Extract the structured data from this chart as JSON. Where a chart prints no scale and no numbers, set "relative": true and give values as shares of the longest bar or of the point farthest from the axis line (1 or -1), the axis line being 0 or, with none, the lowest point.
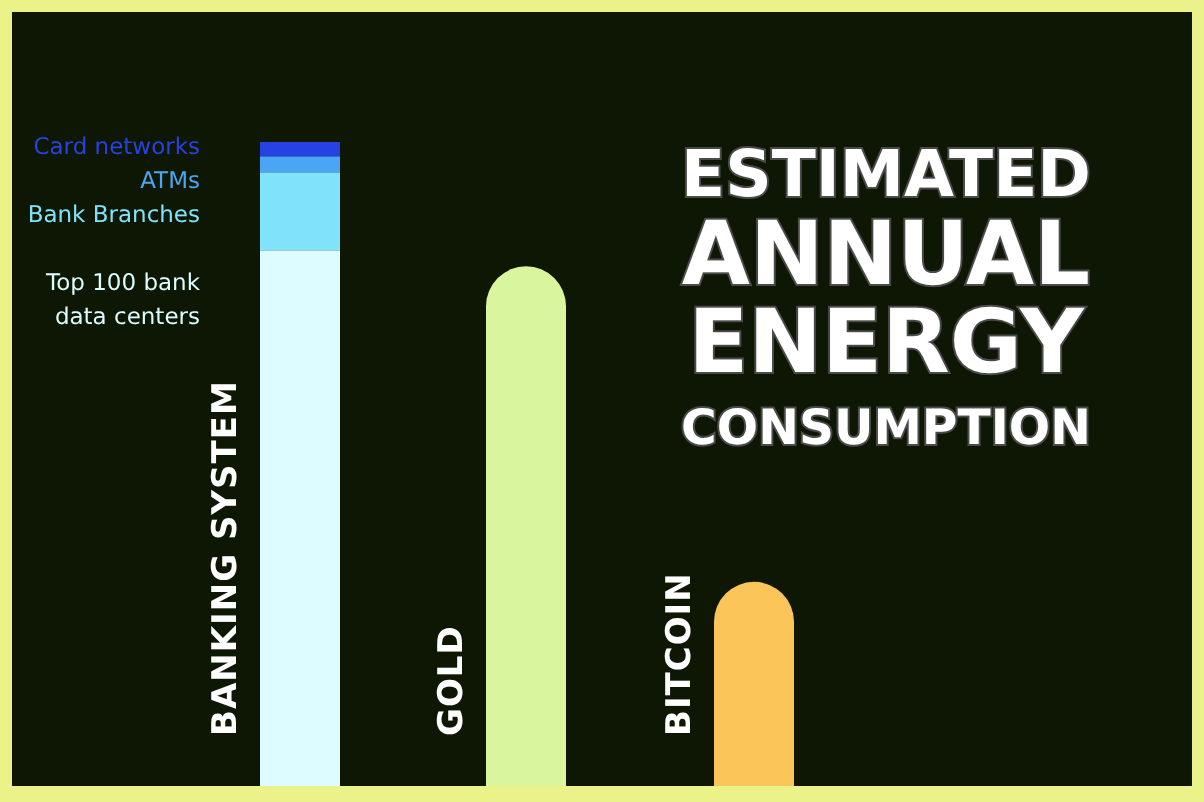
{
  "chart_data": {
    "type": "bar",
    "title": "ESTIMATED ANNUAL ENERGY CONSUMPTION",
    "relative": true,
    "stacked": true,
    "categories": [
      "BANKING SYSTEM",
      "GOLD",
      "BITCOIN"
    ],
    "series": [
      {
        "name": "Top 100 bank data centers",
        "color": "#dcfcff",
        "values": [
          0.832,
          null,
          null
        ]
      },
      {
        "name": "Bank Branches",
        "color": "#80e2fb",
        "values": [
          0.121,
          null,
          null
        ]
      },
      {
        "name": "ATMs",
        "color": "#4aa6f4",
        "values": [
          0.025,
          null,
          null
        ]
      },
      {
        "name": "Card networks",
        "color": "#2742e2",
        "values": [
          0.022,
          null,
          null
        ]
      },
      {
        "colors": [
          null,
          "#d9f59e",
          "#fbc55a"
        ],
        "values": [
          null,
          0.807,
          0.317
        ]
      }
    ]
  }
}
